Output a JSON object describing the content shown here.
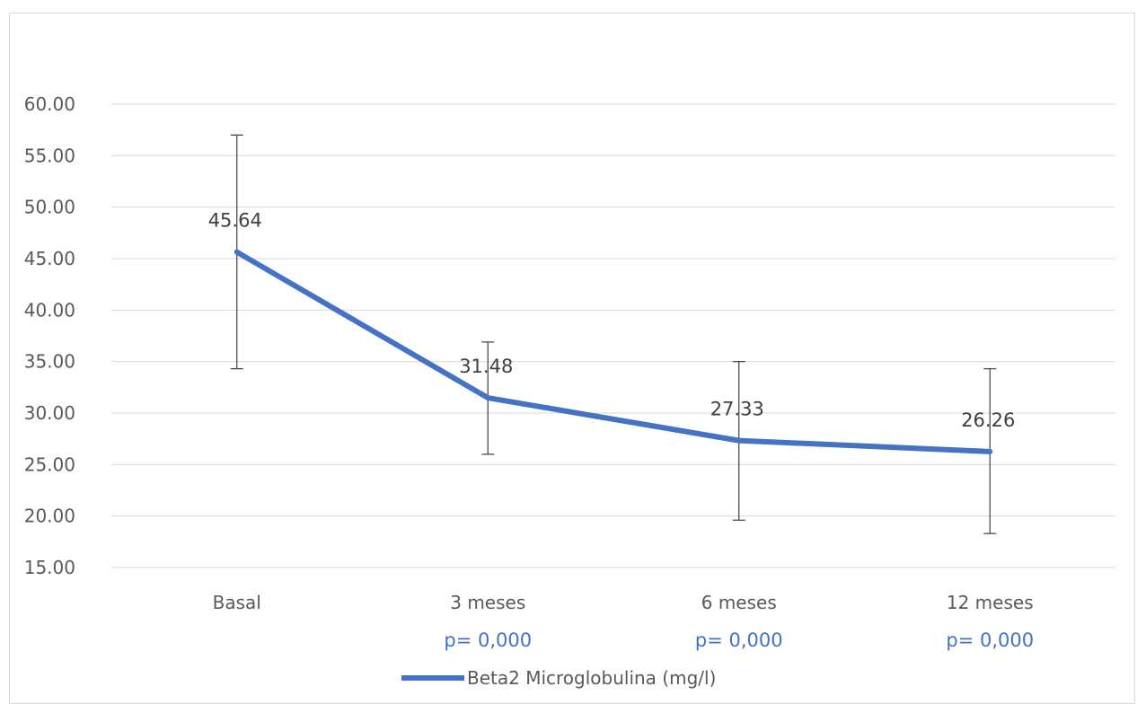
{
  "chart_data": {
    "type": "line",
    "title": "",
    "xlabel": "",
    "ylabel": "",
    "categories": [
      "Basal",
      "3 meses",
      "6 meses",
      "12 meses"
    ],
    "series": [
      {
        "name": "Beta2 Microglobulina (mg/l)",
        "color": "#4472c4",
        "values": [
          45.64,
          31.48,
          27.33,
          26.26
        ],
        "value_labels": [
          "45.64",
          "31.48",
          "27.33",
          "26.26"
        ],
        "error_low": [
          34.3,
          26.0,
          19.6,
          18.3
        ],
        "error_high": [
          57.0,
          36.9,
          35.0,
          34.3
        ]
      }
    ],
    "p_values": [
      "",
      "p= 0,000",
      "p= 0,000",
      "p= 0,000"
    ],
    "ylim": [
      15,
      60
    ],
    "yticks": [
      "15.00",
      "20.00",
      "25.00",
      "30.00",
      "35.00",
      "40.00",
      "45.00",
      "50.00",
      "55.00",
      "60.00"
    ],
    "ytick_values": [
      15,
      20,
      25,
      30,
      35,
      40,
      45,
      50,
      55,
      60
    ],
    "grid": true,
    "legend_position": "bottom"
  }
}
